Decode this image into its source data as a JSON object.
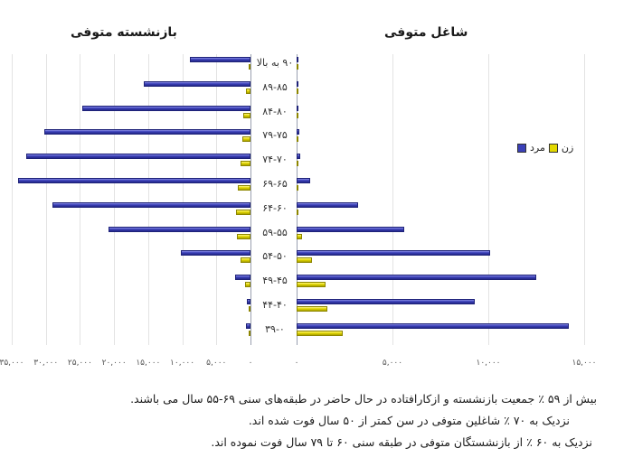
{
  "titles": {
    "left": "بازنشسته متوفی",
    "right": "شاغل متوفی"
  },
  "legend": {
    "female": "زن",
    "male": "مرد"
  },
  "notes": [
    "بیش از ۵۹ ٪ جمعیت بازنشسته و ازکارافتاده در حال حاضر در  طبقه‌های  سنی ۶۹-۵۵ سال می باشند.",
    "نزدیک به ۷۰ ٪  شاغلین متوفی در سن کمتر از ۵۰ سال فوت شده اند.",
    "نزدیک به ۶۰ ٪ از بازنشستگان متوفی در طبقه سنی ۶۰ تا ۷۹ سال فوت نموده اند."
  ],
  "colors": {
    "male": "#3b40b8",
    "female": "#e2d800"
  },
  "chart_data": [
    {
      "type": "bar",
      "orientation": "horizontal",
      "title": "بازنشسته متوفی",
      "direction": "bars extend leftward from zero",
      "categories": [
        "۹۰ به بالا",
        "۸۹-۸۵",
        "۸۴-۸۰",
        "۷۹-۷۵",
        "۷۴-۷۰",
        "۶۹-۶۵",
        "۶۴-۶۰",
        "۵۹-۵۵",
        "۵۴-۵۰",
        "۴۹-۴۵",
        "۴۴-۴۰",
        "۳۹-۰"
      ],
      "series": [
        {
          "name": "مرد",
          "values": [
            8900,
            15600,
            24700,
            30200,
            32900,
            34100,
            29000,
            20800,
            10200,
            2300,
            500,
            600
          ]
        },
        {
          "name": "زن",
          "values": [
            300,
            600,
            1000,
            1200,
            1500,
            1800,
            2100,
            2000,
            1500,
            800,
            100,
            100
          ]
        }
      ],
      "xticks": [
        "۳۵,۰۰۰",
        "۳۰,۰۰۰",
        "۲۵,۰۰۰",
        "۲۰,۰۰۰",
        "۱۵,۰۰۰",
        "۱۰,۰۰۰",
        "۵,۰۰۰",
        "۰"
      ],
      "xlim": [
        0,
        35000
      ],
      "grid": true
    },
    {
      "type": "bar",
      "orientation": "horizontal",
      "title": "شاغل متوفی",
      "direction": "bars extend rightward from zero",
      "categories": [
        "۹۰ به بالا",
        "۸۹-۸۵",
        "۸۴-۸۰",
        "۷۹-۷۵",
        "۷۴-۷۰",
        "۶۹-۶۵",
        "۶۴-۶۰",
        "۵۹-۵۵",
        "۵۴-۵۰",
        "۴۹-۴۵",
        "۴۴-۴۰",
        "۳۹-۰"
      ],
      "series": [
        {
          "name": "مرد",
          "values": [
            50,
            80,
            100,
            150,
            200,
            700,
            3200,
            5600,
            10100,
            12500,
            9300,
            14200
          ]
        },
        {
          "name": "زن",
          "values": [
            10,
            10,
            10,
            20,
            40,
            30,
            100,
            300,
            800,
            1500,
            1600,
            2400
          ]
        }
      ],
      "xticks": [
        "۰",
        "۵,۰۰۰",
        "۱۰,۰۰۰",
        "۱۵,۰۰۰"
      ],
      "xlim": [
        0,
        15000
      ],
      "grid": true,
      "legend": {
        "entries": [
          "زن",
          "مرد"
        ],
        "position": "upper right inside plot"
      }
    }
  ]
}
